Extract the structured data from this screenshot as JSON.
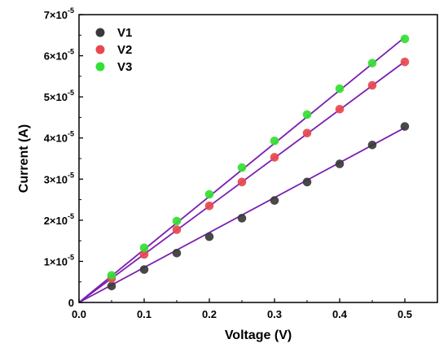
{
  "chart_data": {
    "type": "scatter",
    "xlabel": "Voltage (V)",
    "ylabel": "Current (A)",
    "xlim": [
      0.0,
      0.55
    ],
    "ylim": [
      0,
      7e-05
    ],
    "x_ticks": [
      "0.0",
      "0.1",
      "0.2",
      "0.3",
      "0.4",
      "0.5"
    ],
    "x_tick_values": [
      0.0,
      0.1,
      0.2,
      0.3,
      0.4,
      0.5
    ],
    "y_ticks": [
      {
        "mant": "0",
        "exp": ""
      },
      {
        "mant": "1×10",
        "exp": "-5"
      },
      {
        "mant": "2×10",
        "exp": "-5"
      },
      {
        "mant": "3×10",
        "exp": "-5"
      },
      {
        "mant": "4×10",
        "exp": "-5"
      },
      {
        "mant": "5×10",
        "exp": "-5"
      },
      {
        "mant": "6×10",
        "exp": "-5"
      },
      {
        "mant": "7×10",
        "exp": "-5"
      }
    ],
    "y_tick_values": [
      0,
      1e-05,
      2e-05,
      3e-05,
      4e-05,
      5e-05,
      6e-05,
      7e-05
    ],
    "grid": false,
    "legend_position": "top-left",
    "fit_line_color": "#7b1fb0",
    "x": [
      0.05,
      0.1,
      0.15,
      0.2,
      0.25,
      0.3,
      0.35,
      0.4,
      0.45,
      0.5
    ],
    "series": [
      {
        "name": "V1",
        "color": "#3a3a3a",
        "values": [
          4e-06,
          8e-06,
          1.2e-05,
          1.6e-05,
          2.05e-05,
          2.48e-05,
          2.93e-05,
          3.37e-05,
          3.83e-05,
          4.28e-05
        ],
        "fit_slope": 8.5e-05
      },
      {
        "name": "V2",
        "color": "#e8474f",
        "values": [
          5.8e-06,
          1.17e-05,
          1.77e-05,
          2.35e-05,
          2.93e-05,
          3.53e-05,
          4.12e-05,
          4.7e-05,
          5.28e-05,
          5.85e-05
        ],
        "fit_slope": 0.0001172
      },
      {
        "name": "V3",
        "color": "#33e033",
        "values": [
          6.6e-06,
          1.33e-05,
          1.98e-05,
          2.63e-05,
          3.28e-05,
          3.93e-05,
          4.57e-05,
          5.2e-05,
          5.82e-05,
          6.41e-05
        ],
        "fit_slope": 0.000129
      }
    ]
  }
}
